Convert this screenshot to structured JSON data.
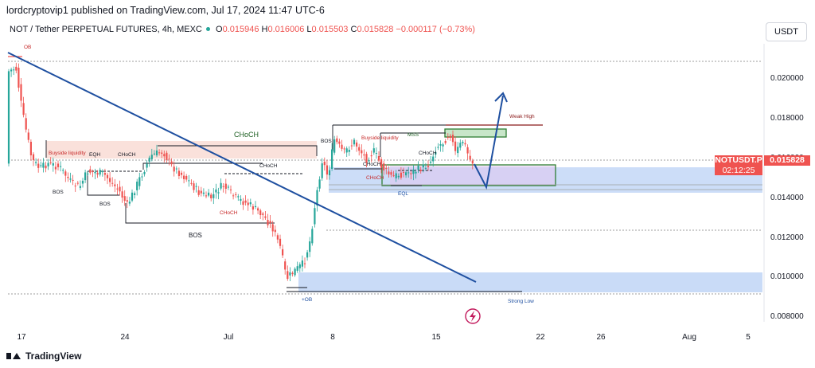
{
  "header": {
    "published": "lordcryptovip1 published on TradingView.com, Jul 17, 2024 11:47 UTC-6",
    "symbol": "NOT / Tether PERPETUAL FUTURES, 4h, MEXC",
    "o_label": "O",
    "o_value": "0.015946",
    "h_label": "H",
    "h_value": "0.016006",
    "l_label": "L",
    "l_value": "0.015503",
    "c_label": "C",
    "c_value": "0.015828",
    "change": "−0.000117 (−0.73%)",
    "currency": "USDT"
  },
  "price_tag": {
    "symbol": "NOTUSDT.P",
    "price": "0.015828",
    "countdown": "02:12:25"
  },
  "footer": {
    "brand": "TradingView"
  },
  "colors": {
    "up": "#26a69a",
    "down": "#ef5350",
    "trend": "#1e4fa0",
    "zone_blue": "#bbd2f5",
    "zone_red": "#f8d7cf",
    "zone_green": "#2e7d32"
  },
  "icons": {
    "flash": "lightning-icon"
  },
  "chart_data": {
    "type": "candlestick",
    "yaxis": {
      "ticks": [
        "0.020000",
        "0.018000",
        "0.016000",
        "0.014000",
        "0.012000",
        "0.010000",
        "0.008000"
      ],
      "ylim": [
        0.0076,
        0.0224
      ]
    },
    "xaxis": {
      "ticks": [
        "17",
        "24",
        "Jul",
        "8",
        "15",
        "22",
        "26",
        "Aug",
        "5"
      ]
    },
    "annotations": [
      "OB",
      "Buyside liquidity",
      "EQH",
      "CHoCH",
      "BOS",
      "BOS",
      "CHoCH",
      "BOS",
      "CHoCH",
      "BOS",
      "CHoCH",
      "CHoCH",
      "+OB",
      "Buyside liquidity",
      "MSS",
      "CHoCH",
      "CHoCH",
      "EQL",
      "Weak High",
      "Strong Low"
    ]
  }
}
